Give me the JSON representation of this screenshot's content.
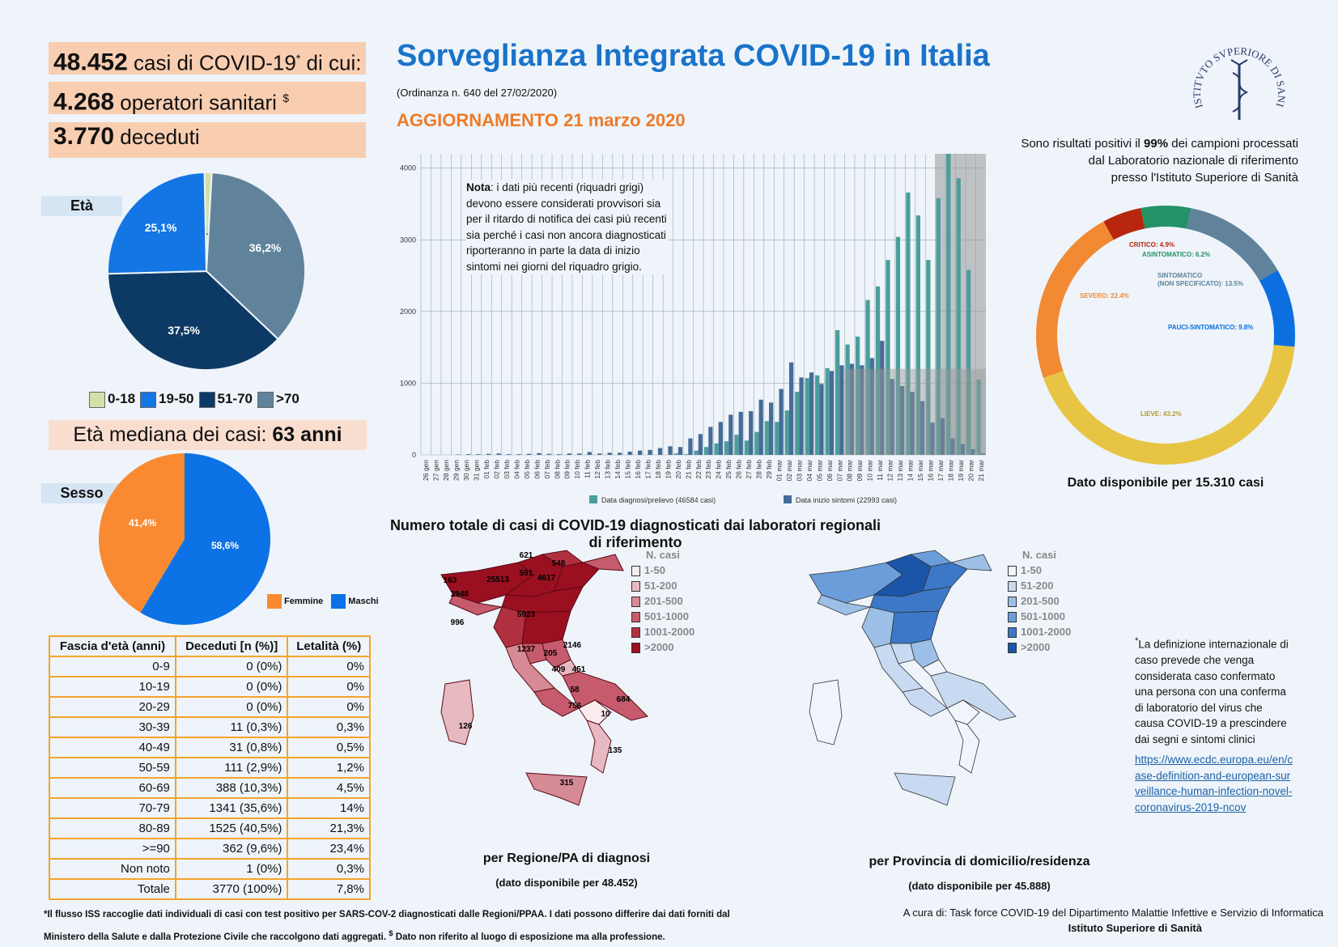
{
  "stats": {
    "cases_num": "48.452",
    "cases_text": " casi di COVID-19",
    "cases_sup": "*",
    "cases_tail": " di cui:",
    "hcw_num": "4.268",
    "hcw_text": " operatori sanitari ",
    "hcw_sup": "$",
    "deaths_num": "3.770",
    "deaths_text": " deceduti"
  },
  "header": {
    "title": "Sorveglianza Integrata COVID-19 in Italia",
    "ordinance": "(Ordinanza n. 640 del 27/02/2020)",
    "update": "AGGIORNAMENTO 21 marzo 2020",
    "logo_text": "ISTITVTO SVPERIORE DI SANITÀ"
  },
  "age": {
    "label": "Età",
    "slices": [
      {
        "name": "0-18",
        "value": 1.2,
        "label": "1,2%",
        "color": "#d4e0a8"
      },
      {
        "name": "19-50",
        "value": 25.1,
        "label": "25,1%",
        "color": "#1476e4"
      },
      {
        "name": "51-70",
        "value": 37.5,
        "label": "37,5%",
        "color": "#0d3a64"
      },
      {
        "name": ">70",
        "value": 36.2,
        "label": "36,2%",
        "color": "#60839b"
      }
    ],
    "median_text": "Età mediana dei casi: ",
    "median_value": "63 anni"
  },
  "sex": {
    "label": "Sesso",
    "slices": [
      {
        "name": "Femmine",
        "value": 41.4,
        "label": "41,4%",
        "color": "#f98a32"
      },
      {
        "name": "Maschi",
        "value": 58.6,
        "label": "58,6%",
        "color": "#0c72e6"
      }
    ]
  },
  "table": {
    "headers": [
      "Fascia d'età (anni)",
      "Deceduti [n (%)]",
      "Letalità (%)"
    ],
    "rows": [
      [
        "0-9",
        "0 (0%)",
        "0%"
      ],
      [
        "10-19",
        "0 (0%)",
        "0%"
      ],
      [
        "20-29",
        "0 (0%)",
        "0%"
      ],
      [
        "30-39",
        "11 (0,3%)",
        "0,3%"
      ],
      [
        "40-49",
        "31 (0,8%)",
        "0,5%"
      ],
      [
        "50-59",
        "111 (2,9%)",
        "1,2%"
      ],
      [
        "60-69",
        "388 (10,3%)",
        "4,5%"
      ],
      [
        "70-79",
        "1341 (35,6%)",
        "14%"
      ],
      [
        "80-89",
        "1525 (40,5%)",
        "21,3%"
      ],
      [
        ">=90",
        "362 (9,6%)",
        "23,4%"
      ],
      [
        "Non noto",
        "1 (0%)",
        "0,3%"
      ],
      [
        "Totale",
        "3770 (100%)",
        "7,8%"
      ]
    ]
  },
  "chart_data": {
    "type": "bar",
    "categories": [
      "26 gen",
      "27 gen",
      "28 gen",
      "29 gen",
      "30 gen",
      "31 gen",
      "01 feb",
      "02 feb",
      "03 feb",
      "04 feb",
      "05 feb",
      "06 feb",
      "07 feb",
      "08 feb",
      "09 feb",
      "10 feb",
      "11 feb",
      "12 feb",
      "13 feb",
      "14 feb",
      "15 feb",
      "16 feb",
      "17 feb",
      "18 feb",
      "19 feb",
      "20 feb",
      "21 feb",
      "22 feb",
      "23 feb",
      "24 feb",
      "25 feb",
      "26 feb",
      "27 feb",
      "28 feb",
      "29 feb",
      "01 mar",
      "02 mar",
      "03 mar",
      "04 mar",
      "05 mar",
      "06 mar",
      "07 mar",
      "08 mar",
      "09 mar",
      "10 mar",
      "11 mar",
      "12 mar",
      "13 mar",
      "14 mar",
      "15 mar",
      "16 mar",
      "17 mar",
      "18 mar",
      "19 mar",
      "20 mar",
      "21 mar"
    ],
    "series": [
      {
        "name": "Data diagnosi/prelievo (46584 casi)",
        "color": "#4a9e9c",
        "values": [
          0,
          0,
          0,
          0,
          0,
          0,
          0,
          0,
          0,
          0,
          0,
          0,
          0,
          0,
          0,
          0,
          0,
          0,
          0,
          0,
          0,
          0,
          0,
          0,
          0,
          20,
          10,
          60,
          110,
          160,
          190,
          280,
          200,
          320,
          470,
          460,
          620,
          880,
          1070,
          1110,
          1210,
          1740,
          1540,
          1650,
          2160,
          2350,
          2720,
          3040,
          3660,
          3340,
          2720,
          3580,
          4200,
          3860,
          2580,
          1050
        ]
      },
      {
        "name": "Data inizio sintomi (22993 casi)",
        "color": "#466c98",
        "values": [
          0,
          0,
          0,
          5,
          10,
          10,
          15,
          20,
          10,
          10,
          15,
          25,
          15,
          10,
          20,
          20,
          40,
          20,
          30,
          30,
          45,
          60,
          70,
          95,
          120,
          110,
          230,
          290,
          390,
          460,
          560,
          600,
          610,
          770,
          730,
          920,
          1290,
          1080,
          1150,
          990,
          1170,
          1250,
          1270,
          1250,
          1350,
          1590,
          1060,
          960,
          880,
          750,
          450,
          510,
          230,
          150,
          80,
          20
        ]
      }
    ],
    "ylim": [
      0,
      4200
    ],
    "yticks": [
      0,
      1000,
      2000,
      3000,
      4000
    ],
    "note_bold": "Nota",
    "note": ": i dati più recenti (riquadri grigi) devono essere considerati provvisori sia per il ritardo di notifica dei casi più recenti sia perché i casi non ancora diagnosticati riporteranno in parte la data di inizio sintomi nei giorni del riquadro grigio."
  },
  "lab": {
    "text_a": "Sono risultati positivi il ",
    "pct": "99%",
    "text_b": " dei campioni processati",
    "line2": "dal Laboratorio nazionale di riferimento",
    "line3": "presso l'Istituto Superiore di Sanità"
  },
  "status": {
    "slices": [
      {
        "name": "CRITICO: 4.9%",
        "value": 4.9,
        "color": "#b8260e"
      },
      {
        "name": "ASINTOMATICO: 6.2%",
        "value": 6.2,
        "color": "#239367"
      },
      {
        "name": "SINTOMATICO (NON SPECIFICATO): 13.5%",
        "value": 13.5,
        "color": "#60839b"
      },
      {
        "name": "PAUCI-SINTOMATICO: 9.8%",
        "value": 9.8,
        "color": "#0c6fe0"
      },
      {
        "name": "LIEVE: 43.2%",
        "value": 43.2,
        "color": "#e8c444"
      },
      {
        "name": "SEVERO: 22.4%",
        "value": 22.4,
        "color": "#f28a34"
      }
    ],
    "sint_line1": "SINTOMATICO",
    "sint_line2": "(NON SPECIFICATO): 13.5%",
    "footer": "Dato disponibile per 15.310 casi"
  },
  "maps": {
    "title": "Numero totale di casi di COVID-19 diagnosticati dai laboratori regionali di riferimento",
    "legend_title": "N. casi",
    "legend": [
      "1-50",
      "51-200",
      "201-500",
      "501-1000",
      "1001-2000",
      ">2000"
    ],
    "region_colors": [
      "#f8ecee",
      "#e7b9c0",
      "#d68a96",
      "#c55b6c",
      "#b1303f",
      "#9b1020"
    ],
    "province_colors": [
      "#f0f5fc",
      "#c7daf1",
      "#9cbfe7",
      "#6b9ddb",
      "#3d78c8",
      "#1b55a8"
    ],
    "region_values": [
      "621",
      "548",
      "163",
      "591",
      "4617",
      "25513",
      "2948",
      "5923",
      "996",
      "1237",
      "2146",
      "205",
      "451",
      "409",
      "58",
      "684",
      "756",
      "10",
      "126",
      "135",
      "315"
    ],
    "region_caption": "per Regione/PA di diagnosi",
    "region_sub": "(dato disponibile per 48.452)",
    "province_caption": "per Provincia di domicilio/residenza",
    "province_sub": "(dato disponibile per 45.888)"
  },
  "definition": {
    "sup": "*",
    "text": "La definizione internazionale di caso prevede che venga considerata caso confermato una persona con una conferma di laboratorio del virus che causa COVID-19 a prescindere dai segni e sintomi clinici",
    "link": "https://www.ecdc.europa.eu/en/case-definition-and-european-surveillance-human-infection-novel-coronavirus-2019-ncov"
  },
  "footer": {
    "note1": "*Il flusso ISS raccoglie dati individuali di casi con test positivo per SARS-COV-2 diagnosticati dalle Regioni/PPAA. I dati possono differire dai dati forniti dal",
    "note2a": "Ministero della Salute e dalla Protezione Civile che raccolgono dati aggregati. ",
    "note2sup": "$",
    "note2b": " Dato non riferito al luogo di esposizione ma alla professione.",
    "credit": "A cura di:  Task force  COVID-19 del Dipartimento Malattie Infettive e Servizio di Informatica",
    "credit_org": "Istituto Superiore di Sanità"
  }
}
